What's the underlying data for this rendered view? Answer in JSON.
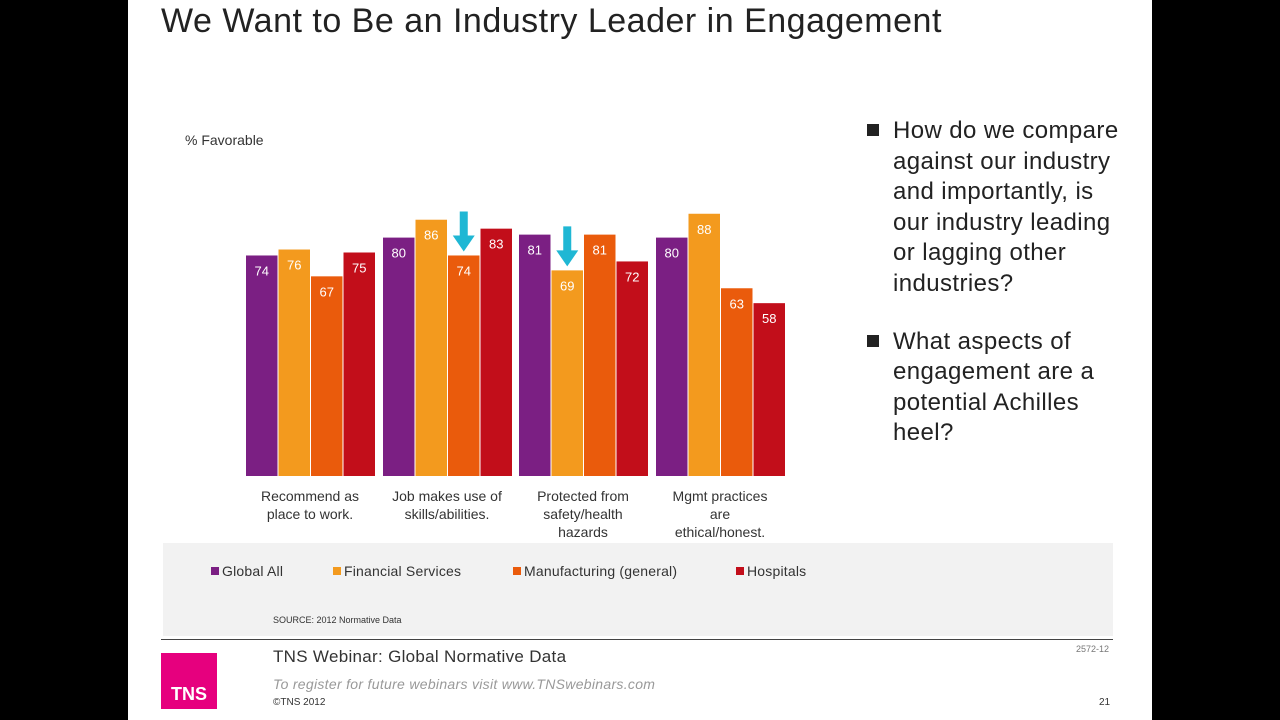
{
  "slide": {
    "title": "We Want to Be an Industry Leader in Engagement",
    "bullets": [
      "How do we compare against our industry and importantly, is our industry leading or lagging other industries?",
      "What aspects of engagement are a potential Achilles heel?"
    ],
    "source": "SOURCE: 2012 Normative Data",
    "footer_title": "TNS Webinar: Global Normative Data",
    "footer_sub": "To register for future webinars visit www.TNSwebinars.com",
    "copyright": "©TNS 2012",
    "page_number": "21",
    "code": "2572-12",
    "logo_text": "TNS"
  },
  "chart_data": {
    "type": "bar",
    "ylabel": "% Favorable",
    "ylim": [
      0,
      100
    ],
    "categories": [
      [
        "Recommend as",
        "place to work."
      ],
      [
        "Job makes use of",
        "skills/abilities."
      ],
      [
        "Protected from",
        "safety/health",
        "hazards"
      ],
      [
        "Mgmt practices",
        "are",
        "ethical/honest."
      ]
    ],
    "series": [
      {
        "name": "Global All",
        "color": "#7b1f83",
        "values": [
          74,
          80,
          81,
          80
        ]
      },
      {
        "name": "Financial Services",
        "color": "#f39a1e",
        "values": [
          76,
          86,
          69,
          88
        ]
      },
      {
        "name": "Manufacturing (general)",
        "color": "#ea5b0c",
        "values": [
          67,
          74,
          81,
          63
        ]
      },
      {
        "name": "Hospitals",
        "color": "#c20e1a",
        "values": [
          75,
          83,
          72,
          58
        ]
      }
    ],
    "arrows": [
      {
        "category": 1,
        "series": 2
      },
      {
        "category": 2,
        "series": 1
      }
    ],
    "arrow_color": "#1fb7d4"
  }
}
